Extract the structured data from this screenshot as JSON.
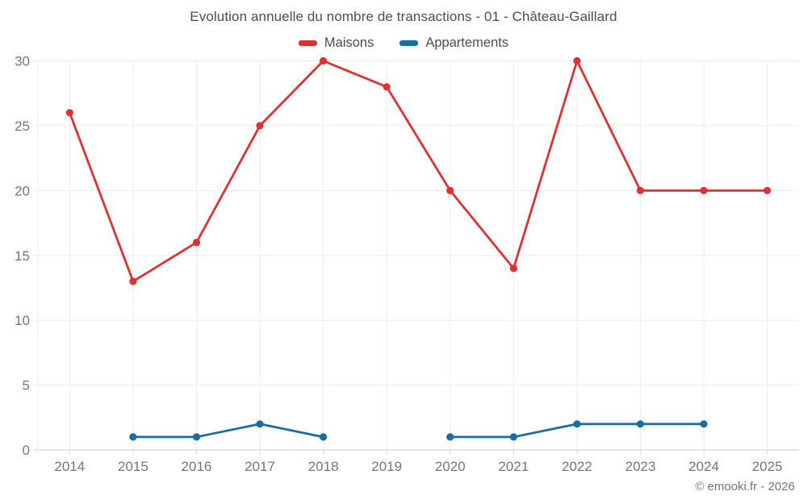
{
  "chart_data": {
    "type": "line",
    "title": "Evolution annuelle du nombre de transactions - 01 - Château-Gaillard",
    "x": [
      "2014",
      "2015",
      "2016",
      "2017",
      "2018",
      "2019",
      "2020",
      "2021",
      "2022",
      "2023",
      "2024",
      "2025"
    ],
    "series": [
      {
        "name": "Maisons",
        "color": "#e03030",
        "values": [
          26,
          13,
          16,
          25,
          30,
          28,
          20,
          14,
          30,
          20,
          20,
          20
        ]
      },
      {
        "name": "Appartements",
        "color": "#1a6ea6",
        "values": [
          null,
          1,
          1,
          2,
          1,
          null,
          1,
          1,
          2,
          2,
          2,
          null
        ]
      }
    ],
    "ylim": [
      0,
      30
    ],
    "yticks": [
      0,
      5,
      10,
      15,
      20,
      25,
      30
    ],
    "xlabel": "",
    "ylabel": "",
    "grid": true,
    "legend_position": "top"
  },
  "footer": "© emooki.fr - 2026",
  "colors": {
    "background": "#ffffff",
    "grid_line": "#ececec",
    "axis_line": "#cfcfcf",
    "tick_mark": "#d6d6d6",
    "tick_label_text": "#757575",
    "title_text": "#4d4d4d"
  }
}
